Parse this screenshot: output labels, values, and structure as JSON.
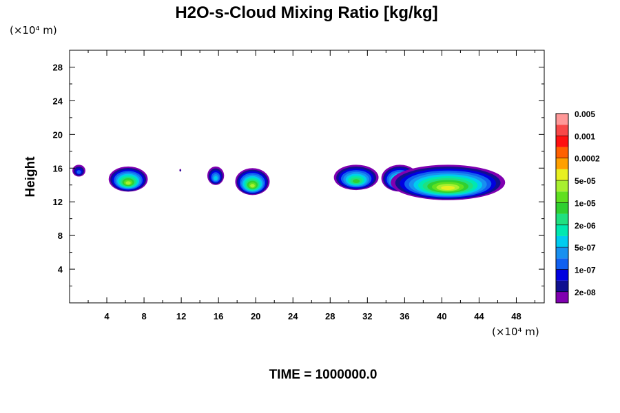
{
  "chart_data": {
    "type": "heatmap",
    "title": "H2O-s-Cloud Mixing Ratio [kg/kg]",
    "xlabel": "",
    "ylabel": "Height",
    "x_unit": "(×10⁴ m)",
    "y_unit": "(×10⁴ m)",
    "xlim": [
      0,
      51
    ],
    "ylim": [
      0,
      30
    ],
    "x_ticks": [
      4,
      8,
      12,
      16,
      20,
      24,
      28,
      32,
      36,
      40,
      44,
      48
    ],
    "y_ticks": [
      4,
      8,
      12,
      16,
      20,
      24,
      28
    ],
    "grid": false,
    "legend_position": "right",
    "colorbar": {
      "colors": [
        "#8000b0",
        "#101090",
        "#0000e0",
        "#1060f0",
        "#1890f0",
        "#00ccf0",
        "#00e8b0",
        "#20e080",
        "#30d030",
        "#60e020",
        "#a8f030",
        "#e8f020",
        "#ffa000",
        "#ff6000",
        "#ff1010",
        "#f84848",
        "#ff9898"
      ],
      "labels": [
        "2e-08",
        "1e-07",
        "5e-07",
        "2e-06",
        "1e-05",
        "5e-05",
        "0.0002",
        "0.001",
        "0.005"
      ]
    },
    "cloud_cells": [
      {
        "x_range": [
          0.3,
          1.7
        ],
        "y_range": [
          15.0,
          16.4
        ],
        "max_level": 3
      },
      {
        "x_range": [
          4.2,
          8.4
        ],
        "y_range": [
          13.2,
          16.2
        ],
        "max_level": 10
      },
      {
        "x_range": [
          11.8,
          12.0
        ],
        "y_range": [
          15.6,
          15.9
        ],
        "max_level": 1
      },
      {
        "x_range": [
          14.8,
          16.6
        ],
        "y_range": [
          14.0,
          16.2
        ],
        "max_level": 5
      },
      {
        "x_range": [
          17.8,
          21.5
        ],
        "y_range": [
          12.8,
          16.0
        ],
        "max_level": 10
      },
      {
        "x_range": [
          28.4,
          33.2
        ],
        "y_range": [
          13.4,
          16.4
        ],
        "max_level": 8
      },
      {
        "x_range": [
          33.5,
          37.5
        ],
        "y_range": [
          13.2,
          16.4
        ],
        "max_level": 9
      },
      {
        "x_range": [
          34.5,
          46.8
        ],
        "y_range": [
          12.2,
          16.4
        ],
        "max_level": 11
      }
    ]
  },
  "footer": {
    "time_label": "TIME = 1000000.0"
  }
}
